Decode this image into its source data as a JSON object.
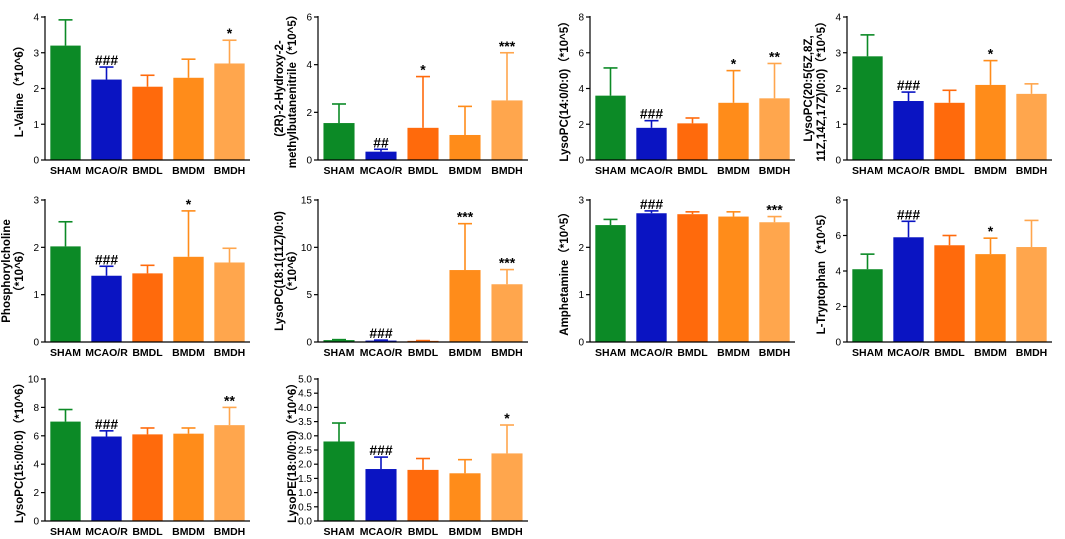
{
  "colors": [
    "#0c8a26",
    "#0a14c2",
    "#ff6a0c",
    "#ff8c1a",
    "#ffa64d"
  ],
  "chart_data": [
    {
      "type": "bar",
      "ylabel_lines": [
        "L-Valine（*10^6）"
      ],
      "categories": [
        "SHAM",
        "MCAO/R",
        "BMDL",
        "BMDM",
        "BMDH"
      ],
      "values": [
        3.2,
        2.25,
        2.05,
        2.3,
        2.7
      ],
      "errors": [
        0.72,
        0.35,
        0.32,
        0.52,
        0.65
      ],
      "annotations": [
        "",
        "###",
        "",
        "",
        "*"
      ],
      "ylim": [
        0,
        4
      ],
      "yticks": [
        "0",
        "1",
        "2",
        "3",
        "4"
      ]
    },
    {
      "type": "bar",
      "ylabel_lines": [
        "(2R)-2-Hydroxy-2-",
        "methylbutanenitrile（*10^5）"
      ],
      "categories": [
        "SHAM",
        "MCAO/R",
        "BMDL",
        "BMDM",
        "BMDH"
      ],
      "values": [
        1.55,
        0.35,
        1.35,
        1.05,
        2.5
      ],
      "errors": [
        0.8,
        0.1,
        2.15,
        1.2,
        2.0
      ],
      "annotations": [
        "",
        "##",
        "*",
        "",
        "***"
      ],
      "ylim": [
        0,
        6
      ],
      "yticks": [
        "0",
        "2",
        "4",
        "6"
      ]
    },
    {
      "type": "bar",
      "ylabel_lines": [
        "LysoPC(14:0/0:0)（*10^5）"
      ],
      "categories": [
        "SHAM",
        "MCAO/R",
        "BMDL",
        "BMDM",
        "BMDH"
      ],
      "values": [
        3.6,
        1.8,
        2.05,
        3.2,
        3.45
      ],
      "errors": [
        1.55,
        0.4,
        0.3,
        1.8,
        1.95
      ],
      "annotations": [
        "",
        "###",
        "",
        "*",
        "**"
      ],
      "ylim": [
        0,
        8
      ],
      "yticks": [
        "0",
        "2",
        "4",
        "6",
        "8"
      ]
    },
    {
      "type": "bar",
      "ylabel_lines": [
        "LysoPC(20:5(5Z,8Z,",
        "11Z,14Z,17Z)/0:0)（*10^5）"
      ],
      "categories": [
        "SHAM",
        "MCAO/R",
        "BMDL",
        "BMDM",
        "BMDH"
      ],
      "values": [
        2.9,
        1.65,
        1.6,
        2.1,
        1.85
      ],
      "errors": [
        0.6,
        0.25,
        0.35,
        0.68,
        0.28
      ],
      "annotations": [
        "",
        "###",
        "",
        "*",
        ""
      ],
      "ylim": [
        0,
        4
      ],
      "yticks": [
        "0",
        "1",
        "2",
        "3",
        "4"
      ]
    },
    {
      "type": "bar",
      "ylabel_lines": [
        "Phosphorylcholine",
        "（*10^6）"
      ],
      "categories": [
        "SHAM",
        "MCAO/R",
        "BMDL",
        "BMDM",
        "BMDH"
      ],
      "values": [
        2.02,
        1.4,
        1.45,
        1.8,
        1.68
      ],
      "errors": [
        0.52,
        0.2,
        0.17,
        0.97,
        0.3
      ],
      "annotations": [
        "",
        "###",
        "",
        "*",
        ""
      ],
      "ylim": [
        0,
        3
      ],
      "yticks": [
        "0",
        "1",
        "2",
        "3"
      ]
    },
    {
      "type": "bar",
      "ylabel_lines": [
        "LysoPC(18:1(11Z)/0:0)",
        "（*10^6）"
      ],
      "categories": [
        "SHAM",
        "MCAO/R",
        "BMDL",
        "BMDM",
        "BMDH"
      ],
      "values": [
        0.2,
        0.15,
        0.12,
        7.6,
        6.1
      ],
      "errors": [
        0.05,
        0.05,
        0.03,
        4.9,
        1.55
      ],
      "annotations": [
        "",
        "###",
        "",
        "***",
        "***"
      ],
      "ylim": [
        0,
        15
      ],
      "yticks": [
        "0",
        "5",
        "10",
        "15"
      ]
    },
    {
      "type": "bar",
      "ylabel_lines": [
        "Amphetamine（*10^5）"
      ],
      "categories": [
        "SHAM",
        "MCAO/R",
        "BMDL",
        "BMDM",
        "BMDH"
      ],
      "values": [
        2.47,
        2.72,
        2.7,
        2.65,
        2.53
      ],
      "errors": [
        0.12,
        0.05,
        0.05,
        0.1,
        0.12
      ],
      "annotations": [
        "",
        "###",
        "",
        "",
        "***"
      ],
      "ylim": [
        0,
        3
      ],
      "yticks": [
        "0",
        "1",
        "2",
        "3"
      ]
    },
    {
      "type": "bar",
      "ylabel_lines": [
        "L-Tryptophan（*10^5）"
      ],
      "categories": [
        "SHAM",
        "MCAO/R",
        "BMDL",
        "BMDM",
        "BMDH"
      ],
      "values": [
        4.1,
        5.9,
        5.45,
        4.95,
        5.35
      ],
      "errors": [
        0.85,
        0.9,
        0.55,
        0.9,
        1.5
      ],
      "annotations": [
        "",
        "###",
        "",
        "*",
        ""
      ],
      "ylim": [
        0,
        8
      ],
      "yticks": [
        "0",
        "2",
        "4",
        "6",
        "8"
      ]
    },
    {
      "type": "bar",
      "ylabel_lines": [
        "LysoPC(15:0/0:0)（*10^6）"
      ],
      "categories": [
        "SHAM",
        "MCAO/R",
        "BMDL",
        "BMDM",
        "BMDH"
      ],
      "values": [
        7.0,
        5.95,
        6.1,
        6.15,
        6.75
      ],
      "errors": [
        0.85,
        0.4,
        0.45,
        0.4,
        1.25
      ],
      "annotations": [
        "",
        "###",
        "",
        "",
        "**"
      ],
      "ylim": [
        0,
        10
      ],
      "yticks": [
        "0",
        "2",
        "4",
        "6",
        "8",
        "10"
      ]
    },
    {
      "type": "bar",
      "ylabel_lines": [
        "LysoPE(18:0/0:0)（*10^6）"
      ],
      "categories": [
        "SHAM",
        "MCAO/R",
        "BMDL",
        "BMDM",
        "BMDH"
      ],
      "values": [
        2.8,
        1.83,
        1.8,
        1.68,
        2.38
      ],
      "errors": [
        0.65,
        0.42,
        0.4,
        0.48,
        1.0
      ],
      "annotations": [
        "",
        "###",
        "",
        "",
        "*"
      ],
      "ylim": [
        0,
        5
      ],
      "yticks": [
        "0.0",
        "0.5",
        "1.0",
        "1.5",
        "2.0",
        "2.5",
        "3.0",
        "3.5",
        "4.0",
        "4.5",
        "5.0"
      ]
    }
  ]
}
